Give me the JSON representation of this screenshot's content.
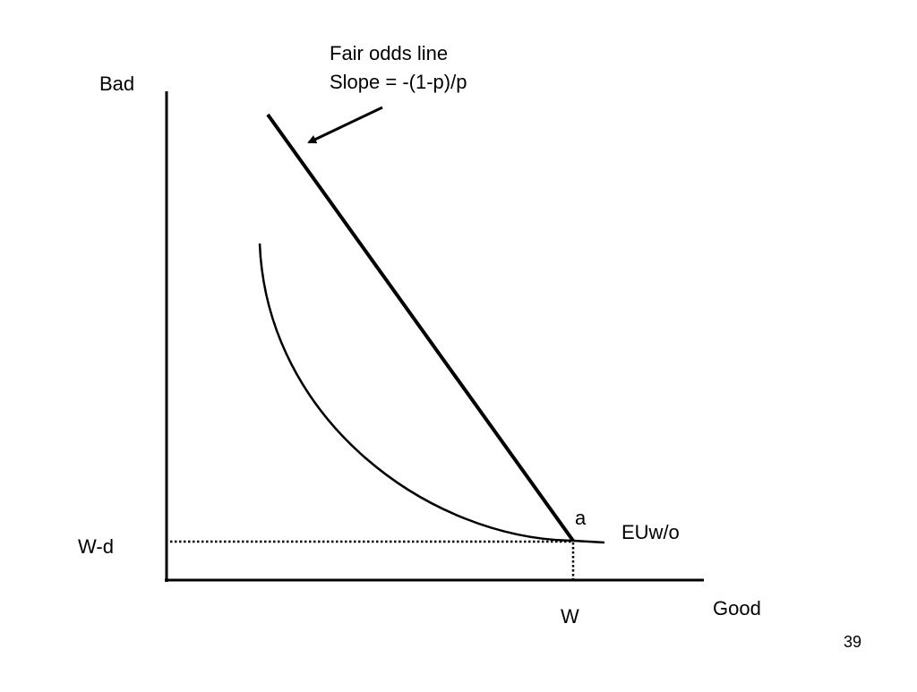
{
  "diagram": {
    "y_axis_label": "Bad",
    "x_axis_label": "Good",
    "fair_odds": {
      "title": "Fair odds line",
      "slope_text": "Slope = -(1-p)/p"
    },
    "point_label": "a",
    "curve_label": "EUw/o",
    "y_tick_label": "W-d",
    "x_tick_label": "W"
  },
  "slide_number": "39"
}
